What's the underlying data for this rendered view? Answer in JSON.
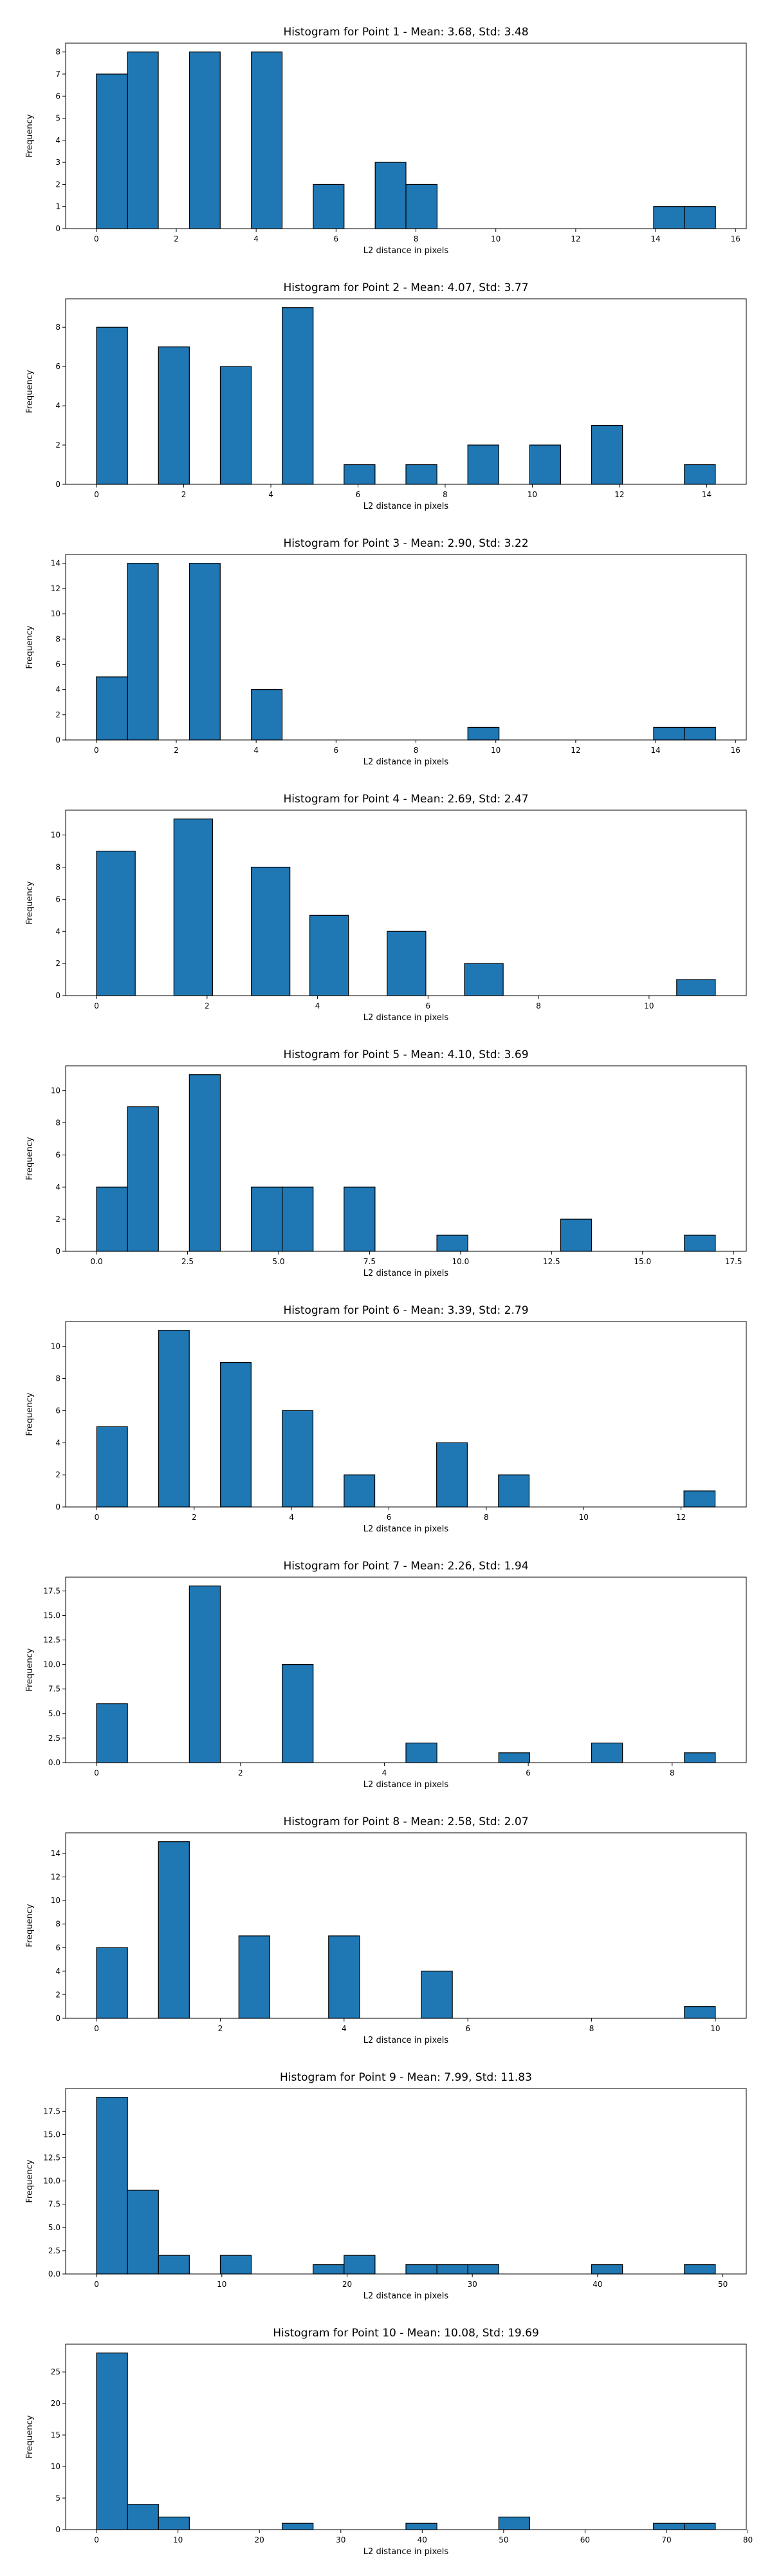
{
  "chart_data": [
    {
      "type": "bar",
      "title": "Histogram for Point 1 - Mean: 3.68, Std: 3.48",
      "xlabel": "L2 distance in pixels",
      "ylabel": "Frequency",
      "xlim": [
        -0.77,
        16.27
      ],
      "ylim": [
        0,
        8.4
      ],
      "xticks": [
        0,
        2,
        4,
        6,
        8,
        10,
        12,
        14,
        16
      ],
      "yticks": [
        0,
        1,
        2,
        3,
        4,
        5,
        6,
        7,
        8
      ],
      "bins": [
        {
          "x0": 0.0,
          "x1": 0.78,
          "count": 7
        },
        {
          "x0": 0.78,
          "x1": 1.55,
          "count": 8
        },
        {
          "x0": 2.33,
          "x1": 3.1,
          "count": 8
        },
        {
          "x0": 3.88,
          "x1": 4.65,
          "count": 8
        },
        {
          "x0": 5.43,
          "x1": 6.2,
          "count": 2
        },
        {
          "x0": 6.98,
          "x1": 7.75,
          "count": 3
        },
        {
          "x0": 7.75,
          "x1": 8.53,
          "count": 2
        },
        {
          "x0": 13.95,
          "x1": 14.73,
          "count": 1
        },
        {
          "x0": 14.73,
          "x1": 15.5,
          "count": 1
        }
      ]
    },
    {
      "type": "bar",
      "title": "Histogram for Point 2 - Mean: 4.07, Std: 3.77",
      "xlabel": "L2 distance in pixels",
      "ylabel": "Frequency",
      "xlim": [
        -0.71,
        14.91
      ],
      "ylim": [
        0,
        9.45
      ],
      "xticks": [
        0,
        2,
        4,
        6,
        8,
        10,
        12,
        14
      ],
      "yticks": [
        0,
        2,
        4,
        6,
        8
      ],
      "bins": [
        {
          "x0": 0.0,
          "x1": 0.71,
          "count": 8
        },
        {
          "x0": 1.42,
          "x1": 2.13,
          "count": 7
        },
        {
          "x0": 2.84,
          "x1": 3.55,
          "count": 6
        },
        {
          "x0": 4.26,
          "x1": 4.97,
          "count": 9
        },
        {
          "x0": 5.68,
          "x1": 6.39,
          "count": 1
        },
        {
          "x0": 7.1,
          "x1": 7.81,
          "count": 1
        },
        {
          "x0": 8.52,
          "x1": 9.23,
          "count": 2
        },
        {
          "x0": 9.94,
          "x1": 10.65,
          "count": 2
        },
        {
          "x0": 11.36,
          "x1": 12.07,
          "count": 3
        },
        {
          "x0": 13.49,
          "x1": 14.2,
          "count": 1
        }
      ]
    },
    {
      "type": "bar",
      "title": "Histogram for Point 3 - Mean: 2.90, Std: 3.22",
      "xlabel": "L2 distance in pixels",
      "ylabel": "Frequency",
      "xlim": [
        -0.77,
        16.27
      ],
      "ylim": [
        0,
        14.7
      ],
      "xticks": [
        0,
        2,
        4,
        6,
        8,
        10,
        12,
        14,
        16
      ],
      "yticks": [
        0,
        2,
        4,
        6,
        8,
        10,
        12,
        14
      ],
      "bins": [
        {
          "x0": 0.0,
          "x1": 0.78,
          "count": 5
        },
        {
          "x0": 0.78,
          "x1": 1.55,
          "count": 14
        },
        {
          "x0": 2.33,
          "x1": 3.1,
          "count": 14
        },
        {
          "x0": 3.88,
          "x1": 4.65,
          "count": 4
        },
        {
          "x0": 9.3,
          "x1": 10.08,
          "count": 1
        },
        {
          "x0": 13.95,
          "x1": 14.73,
          "count": 1
        },
        {
          "x0": 14.73,
          "x1": 15.5,
          "count": 1
        }
      ]
    },
    {
      "type": "bar",
      "title": "Histogram for Point 4 - Mean: 2.69, Std: 2.47",
      "xlabel": "L2 distance in pixels",
      "ylabel": "Frequency",
      "xlim": [
        -0.56,
        11.76
      ],
      "ylim": [
        0,
        11.55
      ],
      "xticks": [
        0,
        2,
        4,
        6,
        8,
        10
      ],
      "yticks": [
        0,
        2,
        4,
        6,
        8,
        10
      ],
      "bins": [
        {
          "x0": 0.0,
          "x1": 0.7,
          "count": 9
        },
        {
          "x0": 1.4,
          "x1": 2.1,
          "count": 11
        },
        {
          "x0": 2.8,
          "x1": 3.5,
          "count": 8
        },
        {
          "x0": 3.86,
          "x1": 4.56,
          "count": 5
        },
        {
          "x0": 5.26,
          "x1": 5.96,
          "count": 4
        },
        {
          "x0": 6.66,
          "x1": 7.36,
          "count": 2
        },
        {
          "x0": 10.5,
          "x1": 11.2,
          "count": 1
        }
      ]
    },
    {
      "type": "bar",
      "title": "Histogram for Point 5 - Mean: 4.10, Std: 3.69",
      "xlabel": "L2 distance in pixels",
      "ylabel": "Frequency",
      "xlim": [
        -0.85,
        17.85
      ],
      "ylim": [
        0,
        11.55
      ],
      "xticks": [
        0.0,
        2.5,
        5.0,
        7.5,
        10.0,
        12.5,
        15.0,
        17.5
      ],
      "yticks": [
        0,
        2,
        4,
        6,
        8,
        10
      ],
      "bins": [
        {
          "x0": 0.0,
          "x1": 0.85,
          "count": 4
        },
        {
          "x0": 0.85,
          "x1": 1.7,
          "count": 9
        },
        {
          "x0": 2.55,
          "x1": 3.4,
          "count": 11
        },
        {
          "x0": 4.25,
          "x1": 5.1,
          "count": 4
        },
        {
          "x0": 5.1,
          "x1": 5.95,
          "count": 4
        },
        {
          "x0": 6.8,
          "x1": 7.65,
          "count": 4
        },
        {
          "x0": 9.35,
          "x1": 10.2,
          "count": 1
        },
        {
          "x0": 12.75,
          "x1": 13.6,
          "count": 2
        },
        {
          "x0": 16.15,
          "x1": 17.0,
          "count": 1
        }
      ]
    },
    {
      "type": "bar",
      "title": "Histogram for Point 6 - Mean: 3.39, Std: 2.79",
      "xlabel": "L2 distance in pixels",
      "ylabel": "Frequency",
      "xlim": [
        -0.64,
        13.34
      ],
      "ylim": [
        0,
        11.55
      ],
      "xticks": [
        0,
        2,
        4,
        6,
        8,
        10,
        12
      ],
      "yticks": [
        0,
        2,
        4,
        6,
        8,
        10
      ],
      "bins": [
        {
          "x0": 0.0,
          "x1": 0.63,
          "count": 5
        },
        {
          "x0": 1.27,
          "x1": 1.9,
          "count": 11
        },
        {
          "x0": 2.54,
          "x1": 3.17,
          "count": 9
        },
        {
          "x0": 3.81,
          "x1": 4.44,
          "count": 6
        },
        {
          "x0": 5.08,
          "x1": 5.71,
          "count": 2
        },
        {
          "x0": 6.98,
          "x1": 7.61,
          "count": 4
        },
        {
          "x0": 8.25,
          "x1": 8.88,
          "count": 2
        },
        {
          "x0": 12.06,
          "x1": 12.7,
          "count": 1
        }
      ]
    },
    {
      "type": "bar",
      "title": "Histogram for Point 7 - Mean: 2.26, Std: 1.94",
      "xlabel": "L2 distance in pixels",
      "ylabel": "Frequency",
      "xlim": [
        -0.43,
        9.03
      ],
      "ylim": [
        0,
        18.9
      ],
      "xticks": [
        0,
        2,
        4,
        6,
        8
      ],
      "yticks": [
        0.0,
        2.5,
        5.0,
        7.5,
        10.0,
        12.5,
        15.0,
        17.5
      ],
      "bins": [
        {
          "x0": 0.0,
          "x1": 0.43,
          "count": 6
        },
        {
          "x0": 1.29,
          "x1": 1.72,
          "count": 18
        },
        {
          "x0": 2.58,
          "x1": 3.01,
          "count": 10
        },
        {
          "x0": 4.3,
          "x1": 4.73,
          "count": 2
        },
        {
          "x0": 5.59,
          "x1": 6.02,
          "count": 1
        },
        {
          "x0": 6.88,
          "x1": 7.31,
          "count": 2
        },
        {
          "x0": 8.17,
          "x1": 8.6,
          "count": 1
        }
      ]
    },
    {
      "type": "bar",
      "title": "Histogram for Point 8 - Mean: 2.58, Std: 2.07",
      "xlabel": "L2 distance in pixels",
      "ylabel": "Frequency",
      "xlim": [
        -0.5,
        10.5
      ],
      "ylim": [
        0,
        15.75
      ],
      "xticks": [
        0,
        2,
        4,
        6,
        8,
        10
      ],
      "yticks": [
        0,
        2,
        4,
        6,
        8,
        10,
        12,
        14
      ],
      "bins": [
        {
          "x0": 0.0,
          "x1": 0.5,
          "count": 6
        },
        {
          "x0": 1.0,
          "x1": 1.5,
          "count": 15
        },
        {
          "x0": 2.3,
          "x1": 2.8,
          "count": 7
        },
        {
          "x0": 3.75,
          "x1": 4.25,
          "count": 7
        },
        {
          "x0": 5.25,
          "x1": 5.75,
          "count": 4
        },
        {
          "x0": 9.5,
          "x1": 10.0,
          "count": 1
        }
      ]
    },
    {
      "type": "bar",
      "title": "Histogram for Point 9 - Mean: 7.99, Std: 11.83",
      "xlabel": "L2 distance in pixels",
      "ylabel": "Frequency",
      "xlim": [
        -2.47,
        51.87
      ],
      "ylim": [
        0,
        19.95
      ],
      "xticks": [
        0,
        10,
        20,
        30,
        40,
        50
      ],
      "yticks": [
        0.0,
        2.5,
        5.0,
        7.5,
        10.0,
        12.5,
        15.0,
        17.5
      ],
      "bins": [
        {
          "x0": 0.0,
          "x1": 2.47,
          "count": 19
        },
        {
          "x0": 2.47,
          "x1": 4.94,
          "count": 9
        },
        {
          "x0": 4.94,
          "x1": 7.41,
          "count": 2
        },
        {
          "x0": 9.88,
          "x1": 12.35,
          "count": 2
        },
        {
          "x0": 17.29,
          "x1": 19.76,
          "count": 1
        },
        {
          "x0": 19.76,
          "x1": 22.23,
          "count": 2
        },
        {
          "x0": 24.7,
          "x1": 27.17,
          "count": 1
        },
        {
          "x0": 27.17,
          "x1": 29.64,
          "count": 1
        },
        {
          "x0": 29.64,
          "x1": 32.11,
          "count": 1
        },
        {
          "x0": 39.52,
          "x1": 41.99,
          "count": 1
        },
        {
          "x0": 46.93,
          "x1": 49.4,
          "count": 1
        }
      ]
    },
    {
      "type": "bar",
      "title": "Histogram for Point 10 - Mean: 10.08, Std: 19.69",
      "xlabel": "L2 distance in pixels",
      "ylabel": "Frequency",
      "xlim": [
        -3.8,
        79.8
      ],
      "ylim": [
        0,
        29.4
      ],
      "xticks": [
        0,
        10,
        20,
        30,
        40,
        50,
        60,
        70,
        80
      ],
      "yticks": [
        0,
        5,
        10,
        15,
        20,
        25
      ],
      "bins": [
        {
          "x0": 0.0,
          "x1": 3.8,
          "count": 28
        },
        {
          "x0": 3.8,
          "x1": 7.6,
          "count": 4
        },
        {
          "x0": 7.6,
          "x1": 11.4,
          "count": 2
        },
        {
          "x0": 22.8,
          "x1": 26.6,
          "count": 1
        },
        {
          "x0": 38.0,
          "x1": 41.8,
          "count": 1
        },
        {
          "x0": 49.4,
          "x1": 53.2,
          "count": 2
        },
        {
          "x0": 68.4,
          "x1": 72.2,
          "count": 1
        },
        {
          "x0": 72.2,
          "x1": 76.0,
          "count": 1
        }
      ]
    }
  ],
  "style": {
    "bar_fill": "#1f77b4",
    "bar_edge": "#000000",
    "axis_color": "#000000",
    "background": "#ffffff"
  }
}
